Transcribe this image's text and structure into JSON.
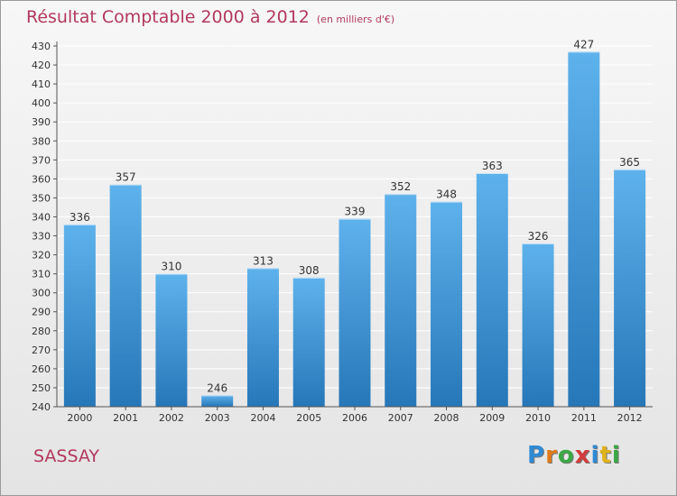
{
  "title": "Résultat Comptable 2000 à 2012",
  "subtitle": "(en milliers d'€)",
  "commune": "SASSAY",
  "logo": {
    "text": "Proxiti",
    "letters": [
      {
        "char": "P",
        "color": "#2f8ad4"
      },
      {
        "char": "r",
        "color": "#e07b1a"
      },
      {
        "char": "o",
        "color": "#3aa845"
      },
      {
        "char": "x",
        "color": "#d23c3c"
      },
      {
        "char": "i",
        "color": "#2f8ad4"
      },
      {
        "char": "t",
        "color": "#e0b21a"
      },
      {
        "char": "i",
        "color": "#3aa845"
      }
    ]
  },
  "colors": {
    "bar_light": "#5eb2ec",
    "bar_dark": "#2677b8",
    "axis": "#555555",
    "grid": "#ffffff",
    "title": "#b2385e"
  },
  "chart_data": {
    "type": "bar",
    "title": "Résultat Comptable 2000 à 2012",
    "subtitle": "(en milliers d'€)",
    "categories": [
      "2000",
      "2001",
      "2002",
      "2003",
      "2004",
      "2005",
      "2006",
      "2007",
      "2008",
      "2009",
      "2010",
      "2011",
      "2012"
    ],
    "values": [
      336,
      357,
      310,
      246,
      313,
      308,
      339,
      352,
      348,
      363,
      326,
      427,
      365
    ],
    "ylim": [
      240,
      430
    ],
    "yticks": [
      240,
      250,
      260,
      270,
      280,
      290,
      300,
      310,
      320,
      330,
      340,
      350,
      360,
      370,
      380,
      390,
      400,
      410,
      420,
      430
    ],
    "xlabel": "",
    "ylabel": "",
    "grid": true,
    "legend": "none"
  }
}
